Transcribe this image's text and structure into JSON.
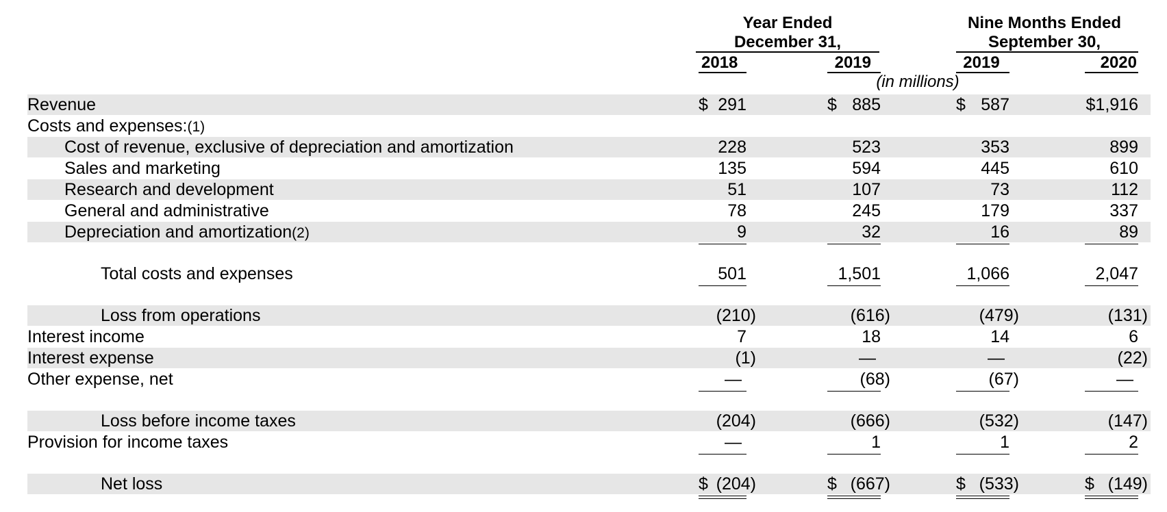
{
  "header": {
    "groups": [
      {
        "line1": "Year Ended",
        "line2": "December 31,"
      },
      {
        "line1": "Nine Months Ended",
        "line2": "September 30,"
      }
    ],
    "columns": [
      "2018",
      "2019",
      "2019",
      "2020"
    ],
    "units": "(in millions)"
  },
  "rows": [
    {
      "label": "Revenue",
      "indent": 0,
      "shaded": true,
      "values": [
        "291",
        "885",
        "587",
        "1,916"
      ],
      "dollar": [
        true,
        true,
        true,
        false
      ]
    },
    {
      "label": "Costs and expenses:",
      "footnote": "(1)",
      "indent": 0,
      "shaded": false,
      "values": [
        "",
        "",
        "",
        ""
      ]
    },
    {
      "label": "Cost of revenue, exclusive of depreciation and amortization",
      "indent": 1,
      "shaded": true,
      "values": [
        "228",
        "523",
        "353",
        "899"
      ]
    },
    {
      "label": "Sales and marketing",
      "indent": 1,
      "shaded": false,
      "values": [
        "135",
        "594",
        "445",
        "610"
      ]
    },
    {
      "label": "Research and development",
      "indent": 1,
      "shaded": true,
      "values": [
        "51",
        "107",
        "73",
        "112"
      ]
    },
    {
      "label": "General and administrative",
      "indent": 1,
      "shaded": false,
      "values": [
        "78",
        "245",
        "179",
        "337"
      ]
    },
    {
      "label": "Depreciation and amortization",
      "footnote": "(2)",
      "indent": 1,
      "shaded": true,
      "values": [
        "9",
        "32",
        "16",
        "89"
      ],
      "underline": "single"
    },
    {
      "label": "Total costs and expenses",
      "indent": 2,
      "shaded": false,
      "values": [
        "501",
        "1,501",
        "1,066",
        "2,047"
      ],
      "underline": "single"
    },
    {
      "label": "Loss from operations",
      "indent": 2,
      "shaded": true,
      "values": [
        "(210)",
        "(616)",
        "(479)",
        "(131)"
      ]
    },
    {
      "label": "Interest income",
      "indent": 0,
      "shaded": false,
      "values": [
        "7",
        "18",
        "14",
        "6"
      ]
    },
    {
      "label": "Interest expense",
      "indent": 0,
      "shaded": true,
      "values": [
        "(1)",
        "—",
        "—",
        "(22)"
      ]
    },
    {
      "label": "Other expense, net",
      "indent": 0,
      "shaded": false,
      "values": [
        "—",
        "(68)",
        "(67)",
        "—"
      ],
      "underline": "single"
    },
    {
      "label": "Loss before income taxes",
      "indent": 2,
      "shaded": true,
      "values": [
        "(204)",
        "(666)",
        "(532)",
        "(147)"
      ]
    },
    {
      "label": "Provision for income taxes",
      "indent": 0,
      "shaded": false,
      "values": [
        "—",
        "1",
        "1",
        "2"
      ],
      "underline": "single"
    },
    {
      "label": "Net loss",
      "indent": 2,
      "shaded": true,
      "values": [
        "(204)",
        "(667)",
        "(533)",
        "(149)"
      ],
      "dollar": [
        true,
        true,
        true,
        true
      ],
      "underline": "double"
    }
  ],
  "currency_symbol": "$"
}
